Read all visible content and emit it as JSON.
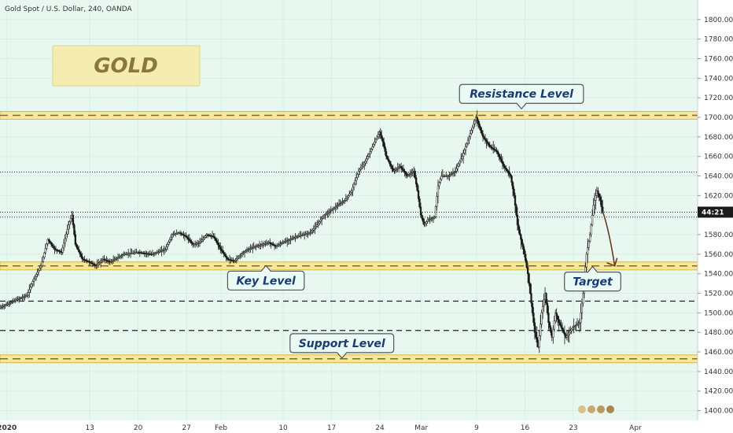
{
  "chart_data": {
    "type": "candlestick",
    "title": "Gold Spot / U.S. Dollar, 240, OANDA",
    "logo_text": "GOLD",
    "ylim": [
      1390,
      1820
    ],
    "y_ticks": [
      1400,
      1420,
      1440,
      1460,
      1480,
      1500,
      1520,
      1540,
      1560,
      1580,
      1600,
      1620,
      1640,
      1660,
      1680,
      1700,
      1720,
      1740,
      1760,
      1780,
      1800
    ],
    "y_tick_labels": [
      "1400.000",
      "1420.000",
      "1440.000",
      "1460.000",
      "1480.000",
      "1500.000",
      "1520.000",
      "1540.000",
      "1560.000",
      "1580.000",
      "1600.000",
      "1620.000",
      "1640.000",
      "1660.000",
      "1680.000",
      "1700.000",
      "1720.000",
      "1740.000",
      "1760.000",
      "1780.000",
      "1800.000"
    ],
    "x_ticks": [
      {
        "label": "2020",
        "day": 1,
        "bold": true
      },
      {
        "label": "13",
        "day": 13
      },
      {
        "label": "20",
        "day": 20
      },
      {
        "label": "27",
        "day": 27
      },
      {
        "label": "Feb",
        "day": 32
      },
      {
        "label": "10",
        "day": 41
      },
      {
        "label": "17",
        "day": 48
      },
      {
        "label": "24",
        "day": 55
      },
      {
        "label": "Mar",
        "day": 61
      },
      {
        "label": "9",
        "day": 69
      },
      {
        "label": "16",
        "day": 76
      },
      {
        "label": "23",
        "day": 83
      },
      {
        "label": "Apr",
        "day": 92
      }
    ],
    "x_domain": [
      0,
      101
    ],
    "price_path": [
      [
        0.0,
        1505
      ],
      [
        2.0,
        1512
      ],
      [
        4.0,
        1518
      ],
      [
        5.0,
        1535
      ],
      [
        6.0,
        1548
      ],
      [
        7.0,
        1575
      ],
      [
        8.0,
        1565
      ],
      [
        9.0,
        1562
      ],
      [
        10.0,
        1590
      ],
      [
        10.5,
        1600
      ],
      [
        11.0,
        1570
      ],
      [
        12.0,
        1555
      ],
      [
        13.0,
        1552
      ],
      [
        14.0,
        1548
      ],
      [
        15.0,
        1555
      ],
      [
        16.0,
        1552
      ],
      [
        18.0,
        1560
      ],
      [
        20.0,
        1562
      ],
      [
        22.0,
        1560
      ],
      [
        24.0,
        1565
      ],
      [
        25.0,
        1580
      ],
      [
        26.0,
        1582
      ],
      [
        27.0,
        1578
      ],
      [
        28.0,
        1570
      ],
      [
        29.0,
        1572
      ],
      [
        30.0,
        1580
      ],
      [
        31.0,
        1578
      ],
      [
        32.0,
        1565
      ],
      [
        33.0,
        1555
      ],
      [
        34.0,
        1553
      ],
      [
        35.0,
        1560
      ],
      [
        36.0,
        1565
      ],
      [
        37.0,
        1568
      ],
      [
        38.0,
        1570
      ],
      [
        39.0,
        1572
      ],
      [
        40.0,
        1568
      ],
      [
        41.0,
        1572
      ],
      [
        42.0,
        1575
      ],
      [
        43.0,
        1578
      ],
      [
        44.0,
        1580
      ],
      [
        45.0,
        1582
      ],
      [
        46.0,
        1590
      ],
      [
        47.0,
        1600
      ],
      [
        48.0,
        1605
      ],
      [
        49.0,
        1610
      ],
      [
        50.0,
        1615
      ],
      [
        51.0,
        1625
      ],
      [
        52.0,
        1645
      ],
      [
        53.0,
        1655
      ],
      [
        54.0,
        1670
      ],
      [
        55.0,
        1685
      ],
      [
        55.5,
        1675
      ],
      [
        56.0,
        1660
      ],
      [
        57.0,
        1645
      ],
      [
        58.0,
        1650
      ],
      [
        59.0,
        1640
      ],
      [
        60.0,
        1645
      ],
      [
        60.5,
        1625
      ],
      [
        61.0,
        1600
      ],
      [
        61.5,
        1590
      ],
      [
        62.0,
        1595
      ],
      [
        63.0,
        1598
      ],
      [
        63.5,
        1630
      ],
      [
        64.0,
        1640
      ],
      [
        65.0,
        1640
      ],
      [
        66.0,
        1645
      ],
      [
        67.0,
        1660
      ],
      [
        68.0,
        1680
      ],
      [
        68.5,
        1690
      ],
      [
        69.0,
        1700
      ],
      [
        69.5,
        1690
      ],
      [
        70.0,
        1680
      ],
      [
        71.0,
        1670
      ],
      [
        72.0,
        1665
      ],
      [
        73.0,
        1650
      ],
      [
        74.0,
        1640
      ],
      [
        74.5,
        1620
      ],
      [
        75.0,
        1590
      ],
      [
        75.5,
        1575
      ],
      [
        76.0,
        1560
      ],
      [
        76.5,
        1540
      ],
      [
        77.0,
        1510
      ],
      [
        77.5,
        1480
      ],
      [
        78.0,
        1465
      ],
      [
        78.5,
        1500
      ],
      [
        79.0,
        1520
      ],
      [
        79.5,
        1490
      ],
      [
        80.0,
        1475
      ],
      [
        80.5,
        1500
      ],
      [
        81.0,
        1490
      ],
      [
        82.0,
        1475
      ],
      [
        82.5,
        1480
      ],
      [
        83.0,
        1485
      ],
      [
        84.0,
        1490
      ],
      [
        84.5,
        1520
      ],
      [
        85.0,
        1560
      ],
      [
        85.5,
        1580
      ],
      [
        86.0,
        1610
      ],
      [
        86.5,
        1625
      ],
      [
        87.0,
        1615
      ],
      [
        87.3,
        1603
      ]
    ],
    "projection": {
      "from": [
        87.3,
        1603
      ],
      "to": [
        89.0,
        1548
      ]
    },
    "levels": [
      {
        "name": "Resistance Level",
        "price": 1702,
        "style": "zone"
      },
      {
        "name": "Key Level",
        "price": 1548,
        "style": "zone"
      },
      {
        "name": "Support Level",
        "price": 1453,
        "style": "zone"
      },
      {
        "price": 1644,
        "style": "dotted"
      },
      {
        "price": 1603,
        "style": "dotted"
      },
      {
        "price": 1598,
        "style": "dotted"
      },
      {
        "price": 1512,
        "style": "dashed"
      },
      {
        "price": 1482,
        "style": "dashed"
      }
    ],
    "annotations": [
      {
        "text": "Resistance Level",
        "day": 75.5,
        "price": 1724,
        "pointer": "down"
      },
      {
        "text": "Key Level",
        "day": 38.5,
        "price": 1533,
        "pointer": "up"
      },
      {
        "text": "Support Level",
        "day": 49.5,
        "price": 1469,
        "pointer": "down"
      },
      {
        "text": "Target",
        "day": 85.8,
        "price": 1532,
        "pointer": "up"
      }
    ],
    "price_badge": {
      "text": "44:21",
      "price": 1603
    }
  }
}
